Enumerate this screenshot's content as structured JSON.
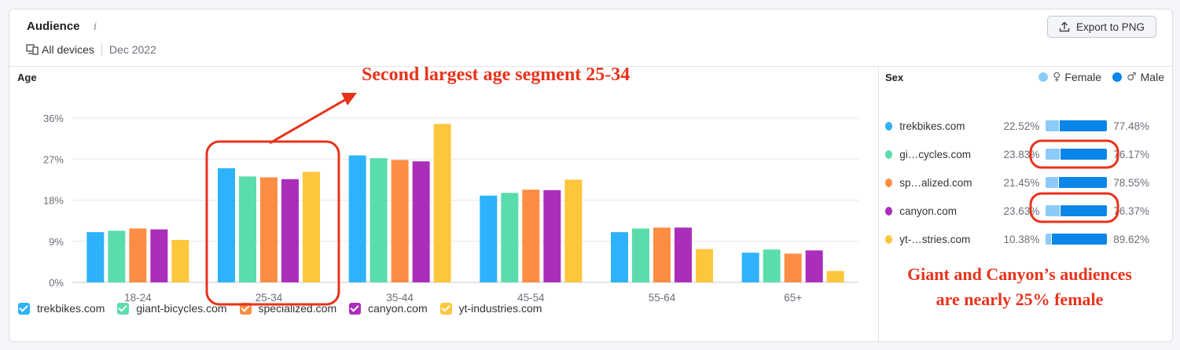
{
  "header": {
    "title": "Audience",
    "info_icon": "ⅰ",
    "device_icon": "devices-icon",
    "devices_label": "All devices",
    "date_label": "Dec 2022",
    "export_label": "Export to PNG"
  },
  "age_panel": {
    "title": "Age"
  },
  "chart_data": {
    "type": "bar",
    "title": "Age",
    "categories": [
      "18-24",
      "25-34",
      "35-44",
      "45-54",
      "55-64",
      "65+"
    ],
    "y_ticks": [
      "0%",
      "9%",
      "18%",
      "27%",
      "36%"
    ],
    "ylim": [
      0,
      36
    ],
    "grid": true,
    "legend_position": "bottom",
    "series": [
      {
        "name": "trekbikes.com",
        "color": "#2db2fb",
        "values": [
          11.0,
          25.0,
          27.8,
          19.0,
          11.0,
          6.5
        ]
      },
      {
        "name": "giant-bicycles.com",
        "color": "#5bddab",
        "values": [
          11.3,
          23.2,
          27.2,
          19.6,
          11.8,
          7.2
        ]
      },
      {
        "name": "specialized.com",
        "color": "#fd8d43",
        "values": [
          11.8,
          23.0,
          26.8,
          20.3,
          12.0,
          6.3
        ]
      },
      {
        "name": "canyon.com",
        "color": "#ab2eba",
        "values": [
          11.6,
          22.6,
          26.5,
          20.2,
          12.0,
          7.0
        ]
      },
      {
        "name": "yt-industries.com",
        "color": "#fdc63c",
        "values": [
          9.3,
          24.2,
          34.7,
          22.5,
          7.3,
          2.5
        ]
      }
    ]
  },
  "sex_panel": {
    "title": "Sex",
    "legend": [
      {
        "label": "Female",
        "symbol": "♀",
        "color": "#8ccbf7"
      },
      {
        "label": "Male",
        "symbol": "♂",
        "color": "#0a85e8"
      }
    ],
    "rows": [
      {
        "site": "trekbikes.com",
        "female": "22.52%",
        "male": "77.48%",
        "female_share": 22.52,
        "color": "#2db2fb"
      },
      {
        "site": "gi…cycles.com",
        "female": "23.83%",
        "male": "76.17%",
        "female_share": 23.83,
        "color": "#5bddab"
      },
      {
        "site": "sp…alized.com",
        "female": "21.45%",
        "male": "78.55%",
        "female_share": 21.45,
        "color": "#fd8d43"
      },
      {
        "site": "canyon.com",
        "female": "23.63%",
        "male": "76.37%",
        "female_share": 23.63,
        "color": "#ab2eba"
      },
      {
        "site": "yt-…stries.com",
        "female": "10.38%",
        "male": "89.62%",
        "female_share": 10.38,
        "color": "#fdc63c"
      }
    ]
  },
  "annotations": {
    "age_note": "Second largest age segment 25-34",
    "sex_note_line1": "Giant and Canyon’s audiences",
    "sex_note_line2": "are nearly 25% female"
  },
  "colors": {
    "annotation": "#e8331c",
    "female": "#8ccbf7",
    "male": "#0a85e8"
  }
}
